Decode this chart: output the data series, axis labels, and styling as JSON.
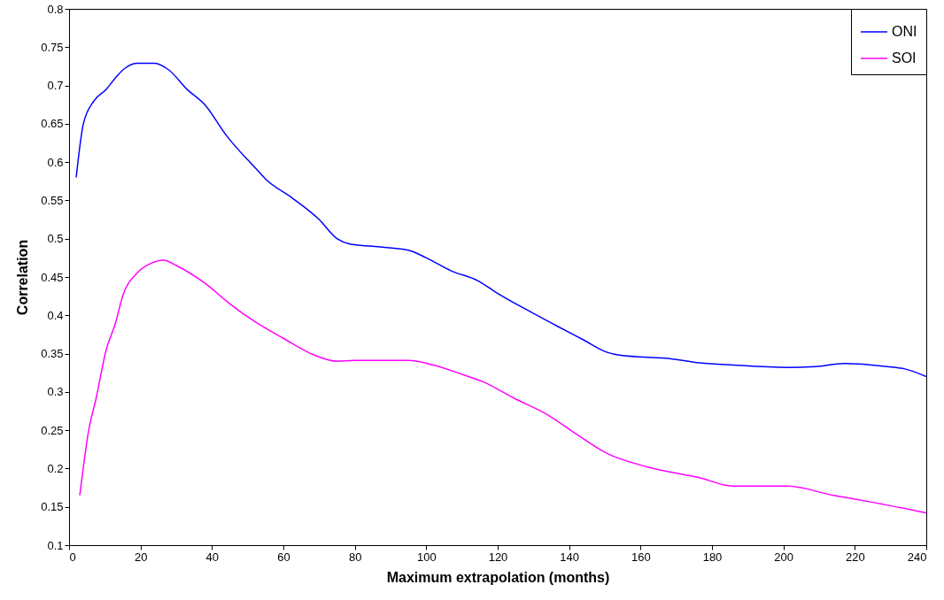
{
  "chart_data": {
    "type": "line",
    "xlabel": "Maximum extrapolation (months)",
    "ylabel": "Correlation",
    "xlim": [
      0,
      240
    ],
    "xticks": [
      0,
      20,
      40,
      60,
      80,
      100,
      120,
      140,
      160,
      180,
      200,
      220,
      240
    ],
    "ylim": [
      0.1,
      0.8
    ],
    "yticks": [
      0.1,
      0.15,
      0.2,
      0.25,
      0.3,
      0.35,
      0.4,
      0.45,
      0.5,
      0.55,
      0.6,
      0.65,
      0.7,
      0.75,
      0.8
    ],
    "grid": false,
    "legend": "top right",
    "marker": "none",
    "line_style": "solid",
    "series": [
      {
        "name": "ONI",
        "color": "#0000ff",
        "x": [
          2,
          4,
          7,
          10.4,
          13,
          15,
          19,
          24,
          28,
          33,
          38,
          44,
          52.6,
          55,
          62.5,
          70,
          75,
          78.6,
          85,
          95,
          100,
          107,
          114.5,
          119.5,
          129,
          137,
          144,
          150.5,
          154,
          169,
          176.5,
          186,
          201,
          209,
          217,
          229,
          234,
          240
        ],
        "values": [
          0.58,
          0.65,
          0.68,
          0.695,
          0.71,
          0.72,
          0.729,
          0.729,
          0.72,
          0.695,
          0.675,
          0.635,
          0.59,
          0.578,
          0.553,
          0.525,
          0.5,
          0.493,
          0.49,
          0.485,
          0.475,
          0.458,
          0.445,
          0.43,
          0.405,
          0.385,
          0.368,
          0.352,
          0.348,
          0.343,
          0.338,
          0.335,
          0.332,
          0.333,
          0.337,
          0.333,
          0.33,
          0.32
        ]
      },
      {
        "name": "SOI",
        "color": "#ff00ff",
        "x": [
          3,
          5.5,
          7.5,
          10.4,
          13,
          15,
          19,
          23,
          26.5,
          30,
          38,
          45,
          52.6,
          60,
          68.7,
          75,
          80,
          95,
          102,
          110,
          116,
          124.5,
          134,
          142,
          150.5,
          162,
          176.5,
          186,
          201,
          214,
          226,
          240
        ],
        "values": [
          0.165,
          0.25,
          0.29,
          0.355,
          0.39,
          0.425,
          0.455,
          0.468,
          0.472,
          0.465,
          0.442,
          0.415,
          0.39,
          0.37,
          0.348,
          0.34,
          0.341,
          0.341,
          0.335,
          0.323,
          0.313,
          0.292,
          0.27,
          0.245,
          0.22,
          0.202,
          0.188,
          0.177,
          0.177,
          0.165,
          0.155,
          0.142
        ]
      }
    ]
  }
}
